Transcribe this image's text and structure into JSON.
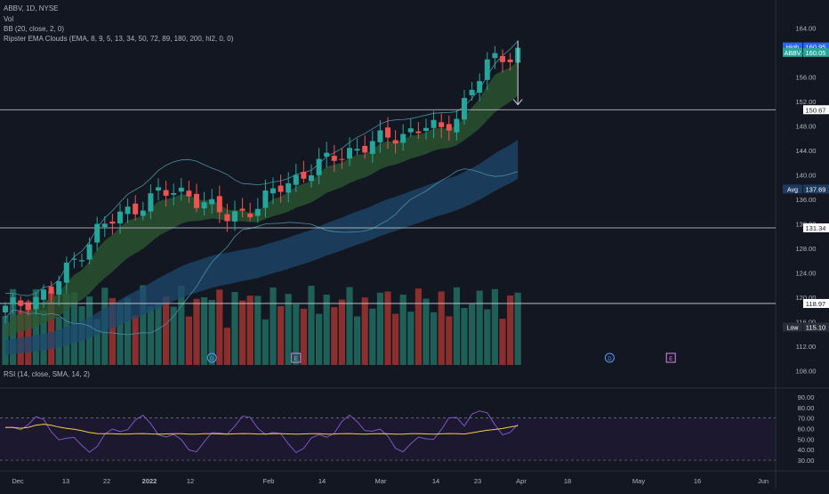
{
  "symbol": "ABBV",
  "timeframe": "1D",
  "exchange": "NYSE",
  "legend": {
    "title_line": "ABBV, 1D, NYSE",
    "vol": "Vol",
    "bb": "BB (20, close, 2, 0)",
    "ema_clouds": "Ripster EMA Clouds (EMA, 8, 9, 5, 13, 34, 50, 72, 89, 180, 200, hl2, 0, 0)",
    "rsi": "RSI (14, close, SMA, 14, 2)"
  },
  "colors": {
    "background": "#131722",
    "up": "#26a69a",
    "down": "#ef5350",
    "vol_up": "#1e5f58",
    "vol_down": "#8b2e2e",
    "cloud_fast": "#2e5a31",
    "cloud_slow": "#1d4a6e",
    "bb_line": "#4a8ea0",
    "rsi_line": "#7e57c2",
    "rsi_ma": "#f5d03a",
    "avg_badge": "#2962ff",
    "high_badge": "#2962ff",
    "last_badge": "#26a69a"
  },
  "chart_data": [
    {
      "type": "candlestick",
      "panel": "price",
      "x_tick_labels": [
        "Dec",
        "13",
        "22",
        "2022",
        "12",
        "Feb",
        "14",
        "Mar",
        "14",
        "23",
        "Apr",
        "18",
        "May",
        "16",
        "Jun"
      ],
      "y_tick_labels": [
        "108.00",
        "112.00",
        "116.00",
        "120.00",
        "124.00",
        "128.00",
        "132.00",
        "136.00",
        "140.00",
        "144.00",
        "148.00",
        "152.00",
        "156.00",
        "160.00",
        "164.00"
      ],
      "ylim": [
        106.0,
        166.0
      ],
      "price_labels": {
        "high": {
          "label": "High",
          "value": "160.95"
        },
        "last": {
          "label": "ABBV",
          "value": "160.05"
        },
        "avg": {
          "label": "Avg",
          "value": "137.69"
        },
        "low": {
          "label": "Low",
          "value": "115.10"
        }
      },
      "horizontal_lines": [
        {
          "value": 150.67,
          "label": "150.67"
        },
        {
          "value": 131.34,
          "label": "131.34"
        },
        {
          "value": 118.97,
          "label": "118.97"
        }
      ],
      "arrow": {
        "x_index": 67,
        "from": 162.0,
        "to": 151.5
      },
      "event_markers": [
        {
          "x_index": 27,
          "glyph": "D"
        },
        {
          "x_index": 38,
          "glyph": "E"
        },
        {
          "x_index": 79,
          "glyph": "D"
        },
        {
          "x_index": 87,
          "glyph": "E"
        }
      ]
    },
    {
      "type": "line",
      "panel": "rsi",
      "y_tick_labels": [
        "30.00",
        "40.00",
        "50.00",
        "60.00",
        "70.00",
        "80.00",
        "90.00"
      ],
      "ylim": [
        25.0,
        95.0
      ],
      "bands": [
        30,
        70
      ]
    }
  ]
}
